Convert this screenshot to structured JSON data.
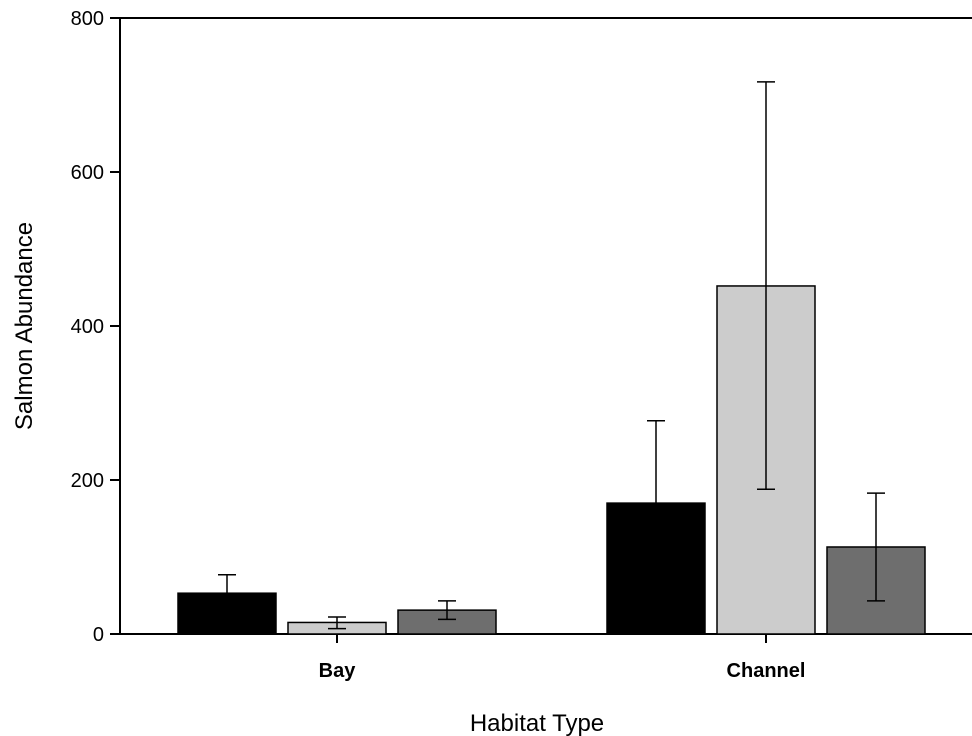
{
  "chart_data": {
    "type": "bar",
    "title": "",
    "xlabel": "Habitat Type",
    "ylabel": "Salmon Abundance",
    "ylim": [
      0,
      800
    ],
    "yticks": [
      0,
      200,
      400,
      600,
      800
    ],
    "grid": false,
    "legend": "none",
    "categories": [
      "Bay",
      "Channel"
    ],
    "series": [
      {
        "color": "#000000",
        "values": [
          53,
          170
        ],
        "err_upper": [
          77,
          277
        ],
        "err_lower": [
          53,
          170
        ]
      },
      {
        "color": "#cccccc",
        "values": [
          15,
          452
        ],
        "err_upper": [
          22,
          717
        ],
        "err_lower": [
          7,
          188
        ]
      },
      {
        "color": "#6e6e6e",
        "values": [
          31,
          113
        ],
        "err_upper": [
          43,
          183
        ],
        "err_lower": [
          19,
          43
        ]
      }
    ]
  }
}
